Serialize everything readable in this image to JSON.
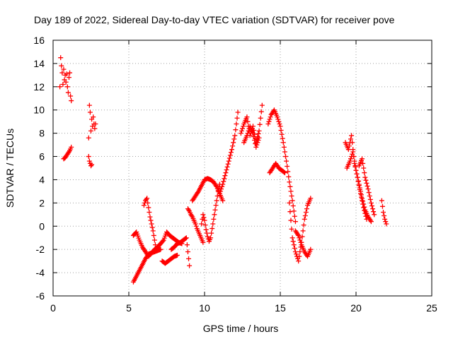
{
  "chart_data": {
    "type": "scatter",
    "title": "Day 189 of 2022, Sidereal Day-to-day VTEC variation (SDTVAR) for receiver pove",
    "xlabel": "GPS time / hours",
    "ylabel": "SDTVAR / TECUs",
    "xlim": [
      0,
      25
    ],
    "ylim": [
      -6,
      16
    ],
    "xticks": [
      0,
      5,
      10,
      15,
      20,
      25
    ],
    "yticks": [
      -6,
      -4,
      -2,
      0,
      2,
      4,
      6,
      8,
      10,
      12,
      14,
      16
    ],
    "grid": true,
    "marker": "+",
    "marker_color": "#ff0000",
    "series": [
      {
        "name": "SDTVAR",
        "segments": [
          {
            "x": [
              0.45,
              0.5,
              0.55,
              0.6,
              0.65,
              0.7,
              0.75,
              0.8,
              0.85,
              0.9,
              0.95,
              1.0,
              1.05,
              1.1,
              1.15,
              1.2
            ],
            "y": [
              12.0,
              14.5,
              13.8,
              13.2,
              12.2,
              13.5,
              12.6,
              13.0,
              12.4,
              13.1,
              12.0,
              11.5,
              12.8,
              13.2,
              11.2,
              10.8
            ]
          },
          {
            "x": [
              0.7,
              0.8,
              0.9,
              1.0,
              1.1,
              1.2
            ],
            "y": [
              5.8,
              5.9,
              6.1,
              6.3,
              6.5,
              6.8
            ]
          },
          {
            "x": [
              2.35,
              2.4,
              2.45,
              2.5,
              2.55,
              2.6,
              2.65,
              2.7,
              2.75,
              2.8
            ],
            "y": [
              7.6,
              10.4,
              9.8,
              8.2,
              9.2,
              8.6,
              9.4,
              8.8,
              8.4,
              8.8
            ]
          },
          {
            "x": [
              2.35,
              2.4,
              2.45,
              2.5,
              2.55
            ],
            "y": [
              6.0,
              5.6,
              5.4,
              5.2,
              5.3
            ]
          },
          {
            "x": [
              5.3,
              5.5,
              5.7,
              5.9,
              6.1,
              6.3,
              6.5,
              6.7,
              6.9,
              7.1
            ],
            "y": [
              -4.8,
              -4.3,
              -3.8,
              -3.3,
              -2.8,
              -2.4,
              -2.3,
              -2.2,
              -2.1,
              -2.0
            ]
          },
          {
            "x": [
              5.3,
              5.5,
              5.7,
              5.9,
              6.1,
              6.3,
              6.5,
              6.7,
              6.9,
              7.1,
              7.3,
              7.5,
              7.7,
              7.9,
              8.1,
              8.3,
              8.5
            ],
            "y": [
              -0.8,
              -0.5,
              -1.2,
              -1.8,
              -2.2,
              -2.6,
              -2.3,
              -2.0,
              -1.8,
              -1.5,
              -1.2,
              -0.5,
              -0.8,
              -1.0,
              -1.2,
              -1.4,
              -1.5
            ]
          },
          {
            "x": [
              6.0,
              6.1,
              6.2,
              6.3,
              6.4,
              6.5,
              6.6,
              6.7,
              6.8
            ],
            "y": [
              1.8,
              2.2,
              2.4,
              1.6,
              0.8,
              0.2,
              -0.4,
              -1.2,
              -2.0
            ]
          },
          {
            "x": [
              7.2,
              7.4,
              7.6,
              7.8,
              8.0,
              8.2
            ],
            "y": [
              -3.0,
              -3.2,
              -3.0,
              -2.8,
              -2.6,
              -2.5
            ]
          },
          {
            "x": [
              7.8,
              8.0,
              8.2,
              8.4,
              8.6,
              8.8,
              9.0
            ],
            "y": [
              -2.0,
              -1.8,
              -1.5,
              -1.4,
              -1.2,
              -1.0,
              -3.4
            ]
          },
          {
            "x": [
              8.9,
              9.0,
              9.1,
              9.2,
              9.3,
              9.4,
              9.5,
              9.6,
              9.7,
              9.8,
              9.9
            ],
            "y": [
              1.5,
              1.3,
              1.0,
              0.8,
              0.5,
              0.2,
              -0.2,
              -0.5,
              -0.8,
              -1.1,
              -1.4
            ]
          },
          {
            "x": [
              9.2,
              9.4,
              9.6,
              9.8,
              10.0,
              10.2,
              10.4,
              10.6,
              10.8,
              11.0,
              11.2
            ],
            "y": [
              2.2,
              2.6,
              3.0,
              3.5,
              4.0,
              4.1,
              4.0,
              3.8,
              3.4,
              2.8,
              2.2
            ]
          },
          {
            "x": [
              9.8,
              9.9,
              10.0,
              10.1,
              10.2,
              10.3,
              10.4,
              10.5,
              10.6,
              10.7,
              10.8,
              10.9,
              11.0
            ],
            "y": [
              0.2,
              1.0,
              0.5,
              -0.3,
              -0.9,
              -1.3,
              -1.0,
              -0.2,
              0.6,
              1.4,
              2.2,
              3.0,
              3.6
            ]
          },
          {
            "x": [
              11.0,
              11.2,
              11.4,
              11.6,
              11.8,
              12.0,
              12.2
            ],
            "y": [
              2.8,
              3.6,
              4.6,
              5.6,
              6.6,
              7.8,
              9.8
            ]
          },
          {
            "x": [
              12.4,
              12.6,
              12.8,
              13.0,
              13.2,
              13.4,
              13.6,
              13.8
            ],
            "y": [
              8.0,
              8.8,
              9.4,
              7.8,
              8.6,
              7.2,
              8.2,
              10.4
            ]
          },
          {
            "x": [
              12.6,
              12.8,
              13.0,
              13.2,
              13.4,
              13.6
            ],
            "y": [
              7.2,
              7.8,
              8.6,
              8.0,
              6.8,
              7.6
            ]
          },
          {
            "x": [
              14.2,
              14.4,
              14.6,
              14.8,
              15.0,
              15.2,
              15.4,
              15.6,
              15.8,
              16.0
            ],
            "y": [
              8.8,
              9.6,
              10.0,
              9.4,
              8.6,
              7.2,
              5.6,
              3.8,
              2.2,
              0.4
            ]
          },
          {
            "x": [
              14.3,
              14.5,
              14.7,
              14.9,
              15.1,
              15.3
            ],
            "y": [
              4.6,
              5.0,
              5.4,
              5.0,
              4.8,
              4.6
            ]
          },
          {
            "x": [
              15.6,
              15.8,
              16.0,
              16.2,
              16.4,
              16.6,
              16.8,
              17.0
            ],
            "y": [
              2.0,
              -1.0,
              -2.2,
              -3.0,
              -1.4,
              0.6,
              1.8,
              2.4
            ]
          },
          {
            "x": [
              16.0,
              16.2,
              16.4,
              16.6,
              16.8,
              17.0
            ],
            "y": [
              -0.4,
              -0.8,
              -1.6,
              -2.2,
              -2.6,
              -2.0
            ]
          },
          {
            "x": [
              19.3,
              19.5,
              19.7,
              19.9,
              20.1,
              20.3,
              20.5,
              20.7
            ],
            "y": [
              7.2,
              6.6,
              7.8,
              5.4,
              4.2,
              2.8,
              1.6,
              0.6
            ]
          },
          {
            "x": [
              19.4,
              19.6,
              19.8,
              20.0,
              20.2,
              20.4,
              20.6,
              20.8,
              21.0
            ],
            "y": [
              5.0,
              5.6,
              6.4,
              4.8,
              3.6,
              2.4,
              1.4,
              0.8,
              0.4
            ]
          },
          {
            "x": [
              20.2,
              20.4,
              20.6,
              20.8,
              21.0,
              21.2
            ],
            "y": [
              5.2,
              5.8,
              4.2,
              3.2,
              2.0,
              1.0
            ]
          },
          {
            "x": [
              21.7,
              21.8,
              21.9,
              22.0
            ],
            "y": [
              2.2,
              1.2,
              0.6,
              0.2
            ]
          }
        ]
      }
    ]
  }
}
